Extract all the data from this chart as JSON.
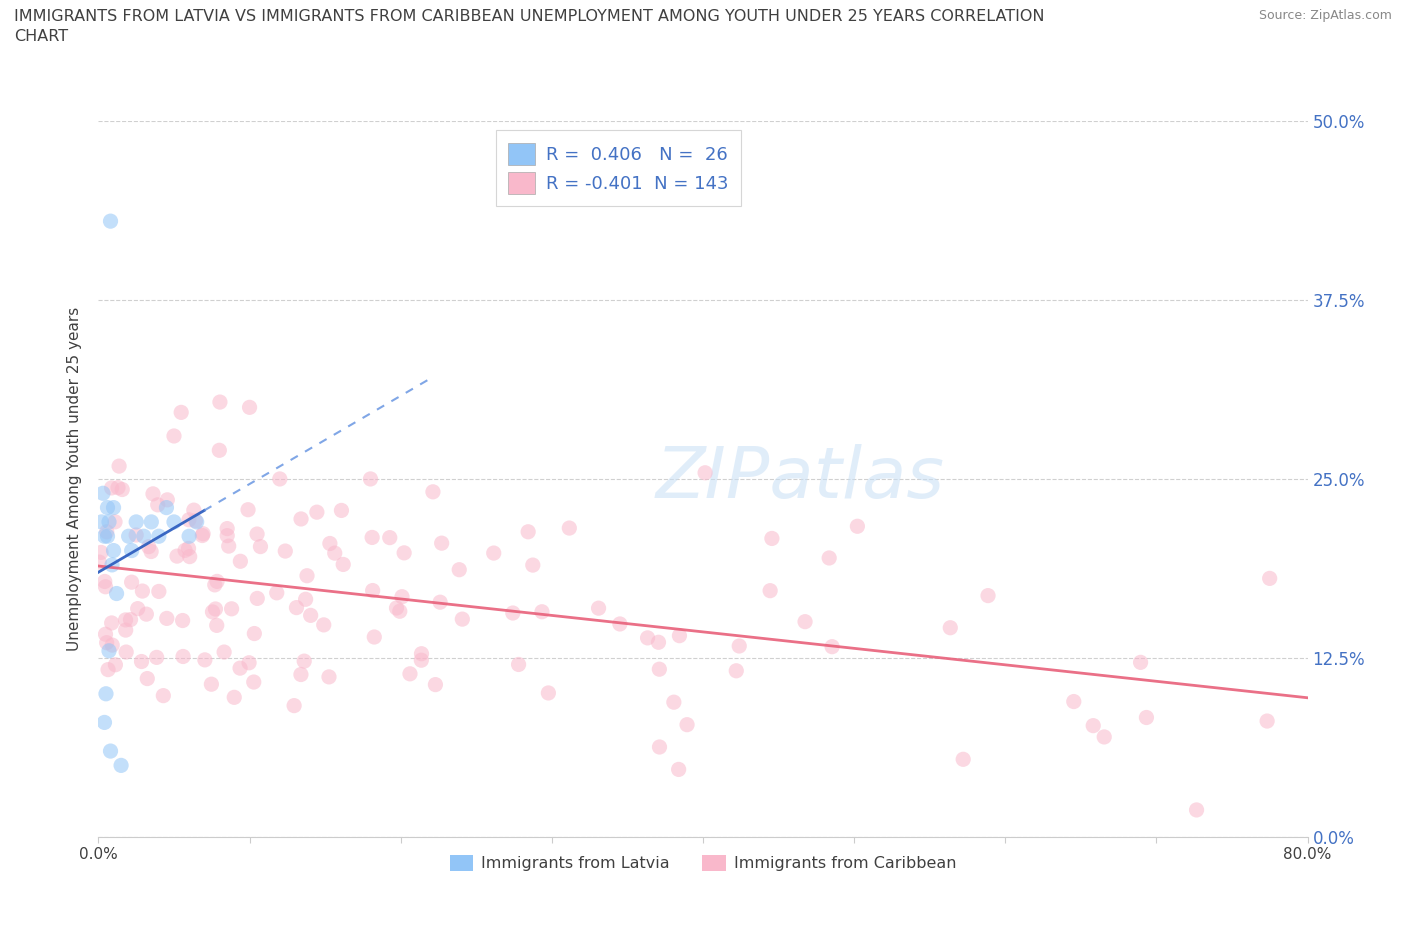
{
  "title": "IMMIGRANTS FROM LATVIA VS IMMIGRANTS FROM CARIBBEAN UNEMPLOYMENT AMONG YOUTH UNDER 25 YEARS CORRELATION\nCHART",
  "source": "Source: ZipAtlas.com",
  "ylabel": "Unemployment Among Youth under 25 years",
  "xlim": [
    0.0,
    0.8
  ],
  "ylim": [
    0.0,
    0.5
  ],
  "ytick_positions": [
    0.0,
    0.125,
    0.25,
    0.375,
    0.5
  ],
  "ytick_labels_right": [
    "0.0%",
    "12.5%",
    "25.0%",
    "37.5%",
    "50.0%"
  ],
  "xtick_positions": [
    0.0,
    0.1,
    0.2,
    0.3,
    0.4,
    0.5,
    0.6,
    0.7,
    0.8
  ],
  "xtick_labels": [
    "0.0%",
    "",
    "",
    "",
    "",
    "",
    "",
    "",
    "80.0%"
  ],
  "latvia_color": "#92c5f7",
  "latvia_edge_color": "none",
  "latvia_line_color": "#3060c0",
  "latvia_line_dashed_color": "#6090e0",
  "caribbean_color": "#f9b8cb",
  "caribbean_edge_color": "none",
  "caribbean_line_color": "#e8607a",
  "R_latvia": 0.406,
  "N_latvia": 26,
  "R_caribbean": -0.401,
  "N_caribbean": 143,
  "legend_label_latvia": "Immigrants from Latvia",
  "legend_label_caribbean": "Immigrants from Caribbean",
  "watermark": "ZIPatlas",
  "background_color": "#ffffff",
  "grid_color": "#d0d0d0",
  "title_color": "#404040",
  "source_color": "#888888",
  "ylabel_color": "#404040",
  "tick_right_color": "#4472c4",
  "tick_bottom_color": "#404040",
  "legend_text_color": "#4472c4",
  "bottom_legend_text_color": "#404040",
  "scatter_size": 120,
  "scatter_alpha": 0.55
}
